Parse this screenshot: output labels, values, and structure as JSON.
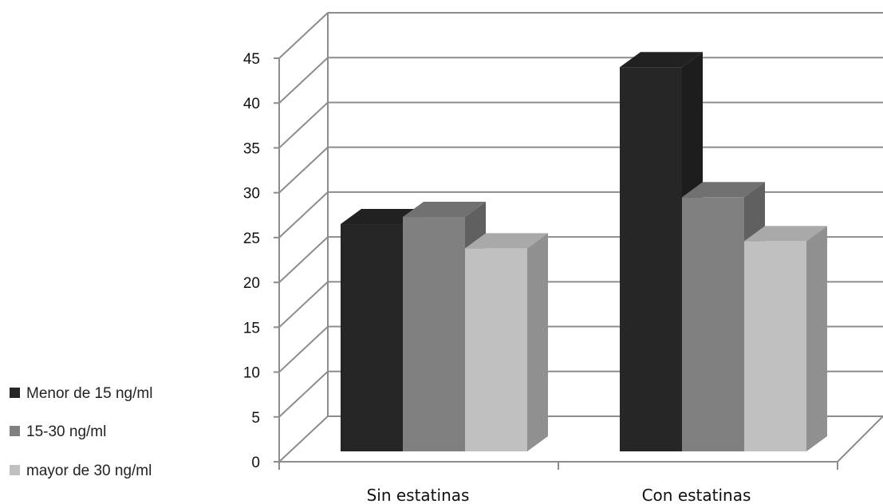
{
  "chart_data": {
    "type": "bar",
    "title": "",
    "xlabel": "",
    "ylabel": "",
    "categories": [
      "Sin estatinas",
      "Con estatinas"
    ],
    "series": [
      {
        "name": "Menor de 15 ng/ml",
        "values": [
          26.5,
          44
        ],
        "color": "#262626"
      },
      {
        "name": "15-30 ng/ml",
        "values": [
          27.3,
          29.5
        ],
        "color": "#808080"
      },
      {
        "name": "mayor de 30 ng/ml",
        "values": [
          23.8,
          24.6
        ],
        "color": "#c0c0c0"
      }
    ],
    "ylim": [
      0,
      45
    ],
    "yticks": [
      0,
      5,
      10,
      15,
      20,
      25,
      30,
      35,
      40,
      45
    ],
    "grid": true,
    "legend_position": "left",
    "style": "3d-clustered-column"
  }
}
